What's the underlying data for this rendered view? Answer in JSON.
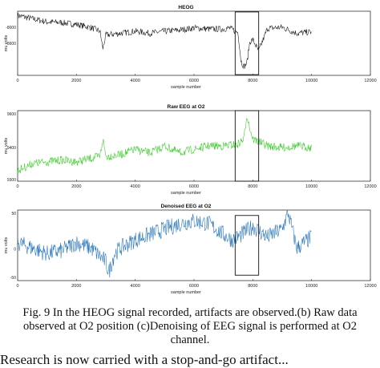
{
  "chart_data": [
    {
      "type": "line",
      "title": "HEOG",
      "xlabel": "sample number",
      "ylabel": "mu volts",
      "xlim": [
        0,
        12000
      ],
      "ylim": [
        -8800,
        -7000
      ],
      "x_ticks": [
        "0",
        "2000",
        "4000",
        "6000",
        "8000",
        "10000",
        "12000"
      ],
      "y_ticks": [
        "-8000",
        "-8600"
      ],
      "color": "#111111",
      "grid": false,
      "series": [
        {
          "x": [
            0,
            500,
            1000,
            1500,
            2000,
            2500,
            2800,
            2900,
            3000,
            3500,
            4000,
            4500,
            5000,
            5500,
            6000,
            6500,
            7000,
            7200,
            7500,
            7600,
            7700,
            7800,
            7900,
            8000,
            8200,
            8500,
            9000,
            9500,
            10000
          ],
          "y": [
            -7120,
            -7210,
            -7300,
            -7320,
            -7370,
            -7460,
            -7560,
            -8050,
            -7670,
            -7620,
            -7560,
            -7620,
            -7560,
            -7530,
            -7470,
            -7500,
            -7500,
            -7470,
            -7600,
            -8400,
            -8560,
            -8450,
            -7850,
            -7800,
            -8120,
            -7480,
            -7450,
            -7620,
            -7580
          ]
        }
      ],
      "box": {
        "x": [
          7400,
          8200
        ],
        "y_top": -7020,
        "y_bottom": -8780
      }
    },
    {
      "type": "line",
      "title": "Raw EEG at O2",
      "xlabel": "sample number",
      "ylabel": "mu volts",
      "xlim": [
        0,
        12000
      ],
      "ylim": [
        -9320,
        -9520
      ],
      "x_ticks": [
        "0",
        "2000",
        "4000",
        "6000",
        "8000",
        "10000",
        "12000"
      ],
      "y_ticks": [
        "9600",
        "9400",
        "9300"
      ],
      "color": "#33cc22",
      "grid": false,
      "series": [
        {
          "x": [
            0,
            500,
            1000,
            1500,
            2000,
            2500,
            2800,
            2900,
            3000,
            3500,
            4000,
            4500,
            5000,
            5500,
            6000,
            6500,
            7000,
            7500,
            7700,
            7800,
            7900,
            8000,
            8500,
            9000,
            9500,
            10000
          ],
          "y": [
            -9350,
            -9370,
            -9375,
            -9380,
            -9375,
            -9385,
            -9390,
            -9440,
            -9390,
            -9395,
            -9410,
            -9400,
            -9420,
            -9400,
            -9410,
            -9420,
            -9420,
            -9425,
            -9440,
            -9510,
            -9470,
            -9440,
            -9420,
            -9415,
            -9420,
            -9415
          ]
        }
      ],
      "box": {
        "x": [
          7400,
          8200
        ],
        "y_top": -9520,
        "y_bottom": -9320
      }
    },
    {
      "type": "line",
      "title": "Denoised EEG at O2",
      "xlabel": "sample number",
      "ylabel": "mu volts",
      "xlim": [
        0,
        12000
      ],
      "ylim": [
        -70,
        60
      ],
      "x_ticks": [
        "0",
        "2000",
        "4000",
        "6000",
        "8000",
        "10000",
        "12000"
      ],
      "y_ticks": [
        "50",
        "0",
        "-50"
      ],
      "color": "#1f6fb8",
      "grid": false,
      "series": [
        {
          "x": [
            0,
            500,
            1000,
            1500,
            2000,
            2500,
            3000,
            3100,
            3300,
            3500,
            4000,
            4500,
            5000,
            5500,
            6000,
            6500,
            7000,
            7300,
            7500,
            8000,
            8500,
            9000,
            9200,
            9500,
            10000
          ],
          "y": [
            0,
            -10,
            -20,
            -15,
            0,
            -10,
            -35,
            -55,
            -20,
            -10,
            5,
            15,
            25,
            35,
            40,
            35,
            15,
            5,
            10,
            30,
            10,
            25,
            55,
            -10,
            10
          ]
        }
      ],
      "box": {
        "x": [
          7400,
          8200
        ],
        "y_top": 50,
        "y_bottom": -60
      }
    }
  ],
  "caption": {
    "line1": "Fig. 9 In the HEOG signal recorded, artifacts are observed.(b) Raw data",
    "line2": "observed at O2 position (c)Denoising of EEG signal is performed at O2",
    "line3": "channel."
  },
  "bottom_text": "Research is now carried with a stop-and-go artifact..."
}
